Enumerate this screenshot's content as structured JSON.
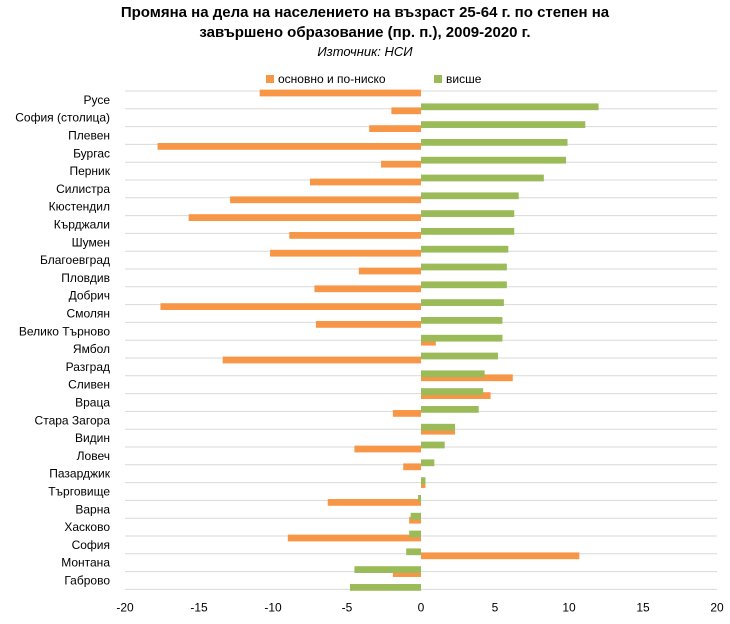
{
  "title_line1": "Промяна на дела на населението на възраст 25-64 г. по степен на",
  "title_line2": "завършено образование (пр. п.), 2009-2020 г.",
  "source": "Източник: НСИ",
  "colors": {
    "basic": "#F79646",
    "higher": "#9BBB59",
    "grid": "#D9D9D9"
  },
  "legend": [
    {
      "label": "основно и по-ниско",
      "color": "#F79646"
    },
    {
      "label": "висше",
      "color": "#9BBB59"
    }
  ],
  "chart_data": {
    "type": "bar",
    "orientation": "horizontal",
    "categories": [
      "Русе",
      "София (столица)",
      "Плевен",
      "Бургас",
      "Перник",
      "Силистра",
      "Кюстендил",
      "Кърджали",
      "Шумен",
      "Благоевград",
      "Пловдив",
      "Добрич",
      "Смолян",
      "Велико Търново",
      "Ямбол",
      "Разград",
      "Сливен",
      "Враца",
      "Стара Загора",
      "Видин",
      "Ловеч",
      "Пазарджик",
      "Търговище",
      "Варна",
      "Хасково",
      "София",
      "Монтана",
      "Габрово"
    ],
    "series": [
      {
        "name": "основно и по-ниско",
        "color": "#F79646",
        "values": [
          -10.9,
          -2.0,
          -3.5,
          -17.8,
          -2.7,
          -7.5,
          -12.9,
          -15.7,
          -8.9,
          -10.2,
          -4.2,
          -7.2,
          -17.6,
          -7.1,
          1.0,
          -13.4,
          6.2,
          4.7,
          -1.9,
          2.3,
          -4.5,
          -1.2,
          0.3,
          -6.3,
          -0.8,
          -9.0,
          10.7,
          -1.9
        ],
        "dy": -0.25
      },
      {
        "name": "висше",
        "color": "#9BBB59",
        "values": [
          12.0,
          11.1,
          9.9,
          9.8,
          8.3,
          6.6,
          6.3,
          6.3,
          5.9,
          5.8,
          5.8,
          5.6,
          5.5,
          5.5,
          5.2,
          4.3,
          4.2,
          3.9,
          2.3,
          1.6,
          0.9,
          0.3,
          -0.2,
          -0.7,
          -0.8,
          -1.0,
          -4.5,
          -4.8
        ],
        "dy": 0.25
      }
    ],
    "xlim": [
      -20,
      20
    ],
    "xticks": [
      "-20",
      "-15",
      "-10",
      "-5",
      "0",
      "5",
      "10",
      "15",
      "20"
    ],
    "xlabel": "",
    "ylabel": "",
    "grid": true,
    "legend_position": "top"
  }
}
